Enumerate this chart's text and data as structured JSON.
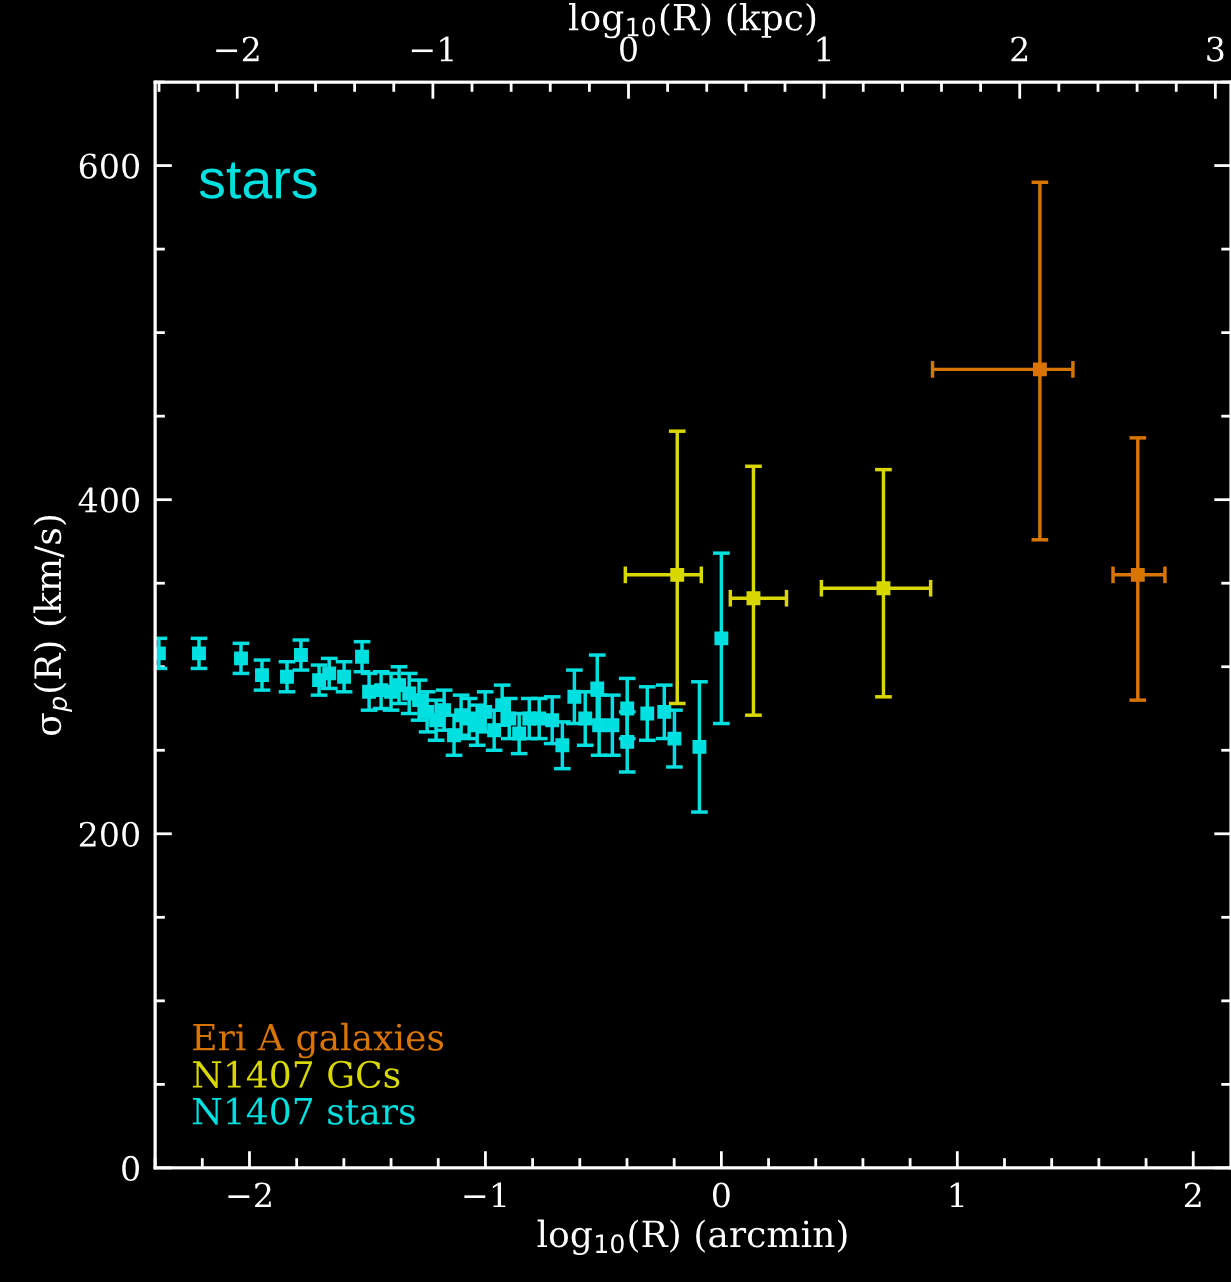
{
  "chart_data": {
    "type": "scatter",
    "xlabel": "log$_{10}$(R) (arcmin)",
    "ylabel": "σ$_{p}$(R) (km/s)",
    "x2label": "log$_{10}$(R) (kpc)",
    "annotations": [
      "stars"
    ],
    "xlim": [
      -2.4,
      2.16
    ],
    "ylim": [
      0,
      650
    ],
    "x2lim": [
      -2.42,
      3.08
    ],
    "xticks": [
      {
        "value": -2.4,
        "label": null
      },
      {
        "value": -2.2,
        "label": null
      },
      {
        "value": -2,
        "label": "−2"
      },
      {
        "value": -1.8,
        "label": null
      },
      {
        "value": -1.6,
        "label": null
      },
      {
        "value": -1.4,
        "label": null
      },
      {
        "value": -1.2,
        "label": null
      },
      {
        "value": -1,
        "label": "−1"
      },
      {
        "value": -0.8,
        "label": null
      },
      {
        "value": -0.6,
        "label": null
      },
      {
        "value": -0.4,
        "label": null
      },
      {
        "value": -0.2,
        "label": null
      },
      0,
      {
        "value": 0.2,
        "label": null
      },
      {
        "value": 0.4,
        "label": null
      },
      {
        "value": 0.6,
        "label": null
      },
      {
        "value": 0.8,
        "label": null
      },
      1,
      {
        "value": 1.2,
        "label": null
      },
      {
        "value": 1.4,
        "label": null
      },
      {
        "value": 1.6,
        "label": null
      },
      {
        "value": 1.8,
        "label": null
      },
      2
    ],
    "x2ticks": [
      {
        "value": -2.4,
        "label": null
      },
      {
        "value": -2.2,
        "label": null
      },
      {
        "value": -2,
        "label": "−2"
      },
      {
        "value": -1.8,
        "label": null
      },
      {
        "value": -1.6,
        "label": null
      },
      {
        "value": -1.4,
        "label": null
      },
      {
        "value": -1.2,
        "label": null
      },
      {
        "value": -1,
        "label": "−1"
      },
      {
        "value": -0.8,
        "label": null
      },
      {
        "value": -0.6,
        "label": null
      },
      {
        "value": -0.4,
        "label": null
      },
      {
        "value": -0.2,
        "label": null
      },
      0,
      {
        "value": 0.2,
        "label": null
      },
      {
        "value": 0.4,
        "label": null
      },
      {
        "value": 0.6,
        "label": null
      },
      {
        "value": 0.8,
        "label": null
      },
      1,
      {
        "value": 1.2,
        "label": null
      },
      {
        "value": 1.4,
        "label": null
      },
      {
        "value": 1.6,
        "label": null
      },
      {
        "value": 1.8,
        "label": null
      },
      2,
      {
        "value": 2.2,
        "label": null
      },
      {
        "value": 2.4,
        "label": null
      },
      {
        "value": 2.6,
        "label": null
      },
      {
        "value": 2.8,
        "label": null
      },
      3
    ],
    "yticks": [
      0,
      {
        "value": 50,
        "label": null
      },
      {
        "value": 100,
        "label": null
      },
      {
        "value": 150,
        "label": null
      },
      200,
      {
        "value": 250,
        "label": null
      },
      {
        "value": 300,
        "label": null
      },
      {
        "value": 350,
        "label": null
      },
      400,
      {
        "value": 450,
        "label": null
      },
      {
        "value": 500,
        "label": null
      },
      {
        "value": 550,
        "label": null
      },
      600,
      {
        "value": 650,
        "label": null
      }
    ],
    "grid": false,
    "legend": "bottom left",
    "marker": "square",
    "series": [
      {
        "name": "Eri A galaxies",
        "color": "#d87400",
        "x": [
          1.35,
          1.765
        ],
        "values": [
          478,
          355
        ],
        "errors": [
          [
            376,
            590
          ],
          [
            280,
            437
          ]
        ],
        "xerrors": [
          [
            0.895,
            1.49
          ],
          [
            1.66,
            1.88
          ]
        ]
      },
      {
        "name": "N1407 GCs",
        "color": "#d8d800",
        "x": [
          -0.187,
          0.136,
          0.687
        ],
        "values": [
          355,
          341,
          347
        ],
        "errors": [
          [
            278,
            441
          ],
          [
            271,
            420
          ],
          [
            282,
            418
          ]
        ],
        "xerrors": [
          [
            -0.407,
            -0.085
          ],
          [
            0.038,
            0.276
          ],
          [
            0.424,
            0.887
          ]
        ]
      },
      {
        "name": "N1407 stars",
        "color": "#00e0e0",
        "x": [
          -2.384,
          -2.214,
          -2.036,
          -1.947,
          -1.841,
          -1.782,
          -1.705,
          -1.662,
          -1.599,
          -1.523,
          -1.493,
          -1.442,
          -1.4,
          -1.366,
          -1.323,
          -1.281,
          -1.247,
          -1.209,
          -1.175,
          -1.133,
          -1.103,
          -1.069,
          -1.035,
          -1.001,
          -0.963,
          -0.929,
          -0.899,
          -0.857,
          -0.814,
          -0.772,
          -0.717,
          -0.674,
          -0.623,
          -0.577,
          -0.526,
          -0.518,
          -0.462,
          -0.399,
          -0.399,
          -0.314,
          -0.242,
          -0.199,
          -0.093,
          0.0
        ],
        "values": [
          308,
          308,
          305,
          295,
          294,
          307,
          292,
          296,
          294,
          306,
          285,
          286,
          285,
          289,
          284,
          280,
          273,
          268,
          274,
          259,
          271,
          269,
          265,
          273,
          262,
          277,
          269,
          260,
          269,
          269,
          268,
          253,
          282,
          269,
          287,
          265,
          265,
          255,
          275,
          272,
          273,
          257,
          252,
          317
        ],
        "errors": [
          9,
          9,
          9,
          9,
          9,
          9,
          9,
          9,
          9,
          9,
          11,
          11,
          11,
          11,
          12,
          12,
          12,
          12,
          12,
          12,
          12,
          12,
          12,
          12,
          12,
          12,
          12,
          12,
          12,
          12,
          14,
          14,
          16,
          16,
          20,
          18,
          18,
          18,
          18,
          16,
          16,
          17,
          39,
          51
        ]
      }
    ]
  }
}
